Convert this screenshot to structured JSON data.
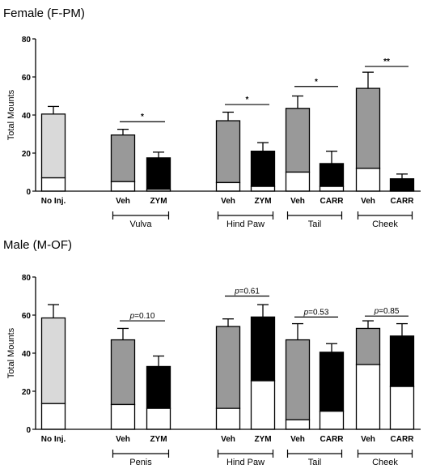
{
  "chart_data": [
    {
      "type": "bar",
      "stacked": true,
      "title": "Female (F-PM)",
      "ylabel": "Total Mounts",
      "ylim": [
        0,
        80
      ],
      "yticks": [
        "0",
        "20",
        "40",
        "60",
        "80"
      ],
      "categories": [
        "No Inj.",
        "Veh",
        "ZYM",
        "Veh",
        "ZYM",
        "Veh",
        "CARR",
        "Veh",
        "CARR"
      ],
      "groups": [
        {
          "label": "Vulva",
          "from": 1,
          "to": 2
        },
        {
          "label": "Hind Paw",
          "from": 3,
          "to": 4
        },
        {
          "label": "Tail",
          "from": 5,
          "to": 6
        },
        {
          "label": "Cheek",
          "from": 7,
          "to": 8
        }
      ],
      "bars": [
        {
          "total": 40.5,
          "error": 4,
          "lower": 7,
          "color": "#d9d9d9"
        },
        {
          "total": 29.5,
          "error": 3,
          "lower": 5,
          "color": "#999999"
        },
        {
          "total": 17.5,
          "error": 3,
          "lower": 1,
          "color": "#000000"
        },
        {
          "total": 37,
          "error": 4.5,
          "lower": 4.5,
          "color": "#999999"
        },
        {
          "total": 21,
          "error": 4.5,
          "lower": 2.5,
          "color": "#000000"
        },
        {
          "total": 43.5,
          "error": 6.5,
          "lower": 10,
          "color": "#999999"
        },
        {
          "total": 14.5,
          "error": 6.5,
          "lower": 2.5,
          "color": "#000000"
        },
        {
          "total": 54,
          "error": 8.5,
          "lower": 12,
          "color": "#999999"
        },
        {
          "total": 6.5,
          "error": 2.5,
          "lower": 0.5,
          "color": "#000000"
        }
      ],
      "comparisons": [
        {
          "from": 1,
          "to": 2,
          "label": "*",
          "y": 36.5
        },
        {
          "from": 3,
          "to": 4,
          "label": "*",
          "y": 45.5
        },
        {
          "from": 5,
          "to": 6,
          "label": "*",
          "y": 55
        },
        {
          "from": 7,
          "to": 8,
          "label": "**",
          "y": 65.5
        }
      ]
    },
    {
      "type": "bar",
      "stacked": true,
      "title": "Male (M-OF)",
      "ylabel": "Total Mounts",
      "ylim": [
        0,
        80
      ],
      "yticks": [
        "0",
        "20",
        "40",
        "60",
        "80"
      ],
      "categories": [
        "No Inj.",
        "Veh",
        "ZYM",
        "Veh",
        "ZYM",
        "Veh",
        "CARR",
        "Veh",
        "CARR"
      ],
      "groups": [
        {
          "label": "Penis",
          "from": 1,
          "to": 2
        },
        {
          "label": "Hind Paw",
          "from": 3,
          "to": 4
        },
        {
          "label": "Tail",
          "from": 5,
          "to": 6
        },
        {
          "label": "Cheek",
          "from": 7,
          "to": 8
        }
      ],
      "bars": [
        {
          "total": 58.5,
          "error": 7,
          "lower": 13.5,
          "color": "#d9d9d9"
        },
        {
          "total": 47,
          "error": 6,
          "lower": 13,
          "color": "#999999"
        },
        {
          "total": 33,
          "error": 5.5,
          "lower": 11,
          "color": "#000000"
        },
        {
          "total": 54,
          "error": 4,
          "lower": 11,
          "color": "#999999"
        },
        {
          "total": 59,
          "error": 6.5,
          "lower": 25.5,
          "color": "#000000"
        },
        {
          "total": 47,
          "error": 8.5,
          "lower": 5,
          "color": "#999999"
        },
        {
          "total": 40.5,
          "error": 4.5,
          "lower": 9.5,
          "color": "#000000"
        },
        {
          "total": 53,
          "error": 4,
          "lower": 34,
          "color": "#999999"
        },
        {
          "total": 49,
          "error": 6.5,
          "lower": 22.5,
          "color": "#000000"
        }
      ],
      "comparisons": [
        {
          "from": 1,
          "to": 2,
          "label": "p=0.10",
          "y": 57
        },
        {
          "from": 3,
          "to": 4,
          "label": "p=0.61",
          "y": 70
        },
        {
          "from": 5,
          "to": 6,
          "label": "p=0.53",
          "y": 59
        },
        {
          "from": 7,
          "to": 8,
          "label": "p=0.85",
          "y": 59.5
        }
      ]
    }
  ]
}
